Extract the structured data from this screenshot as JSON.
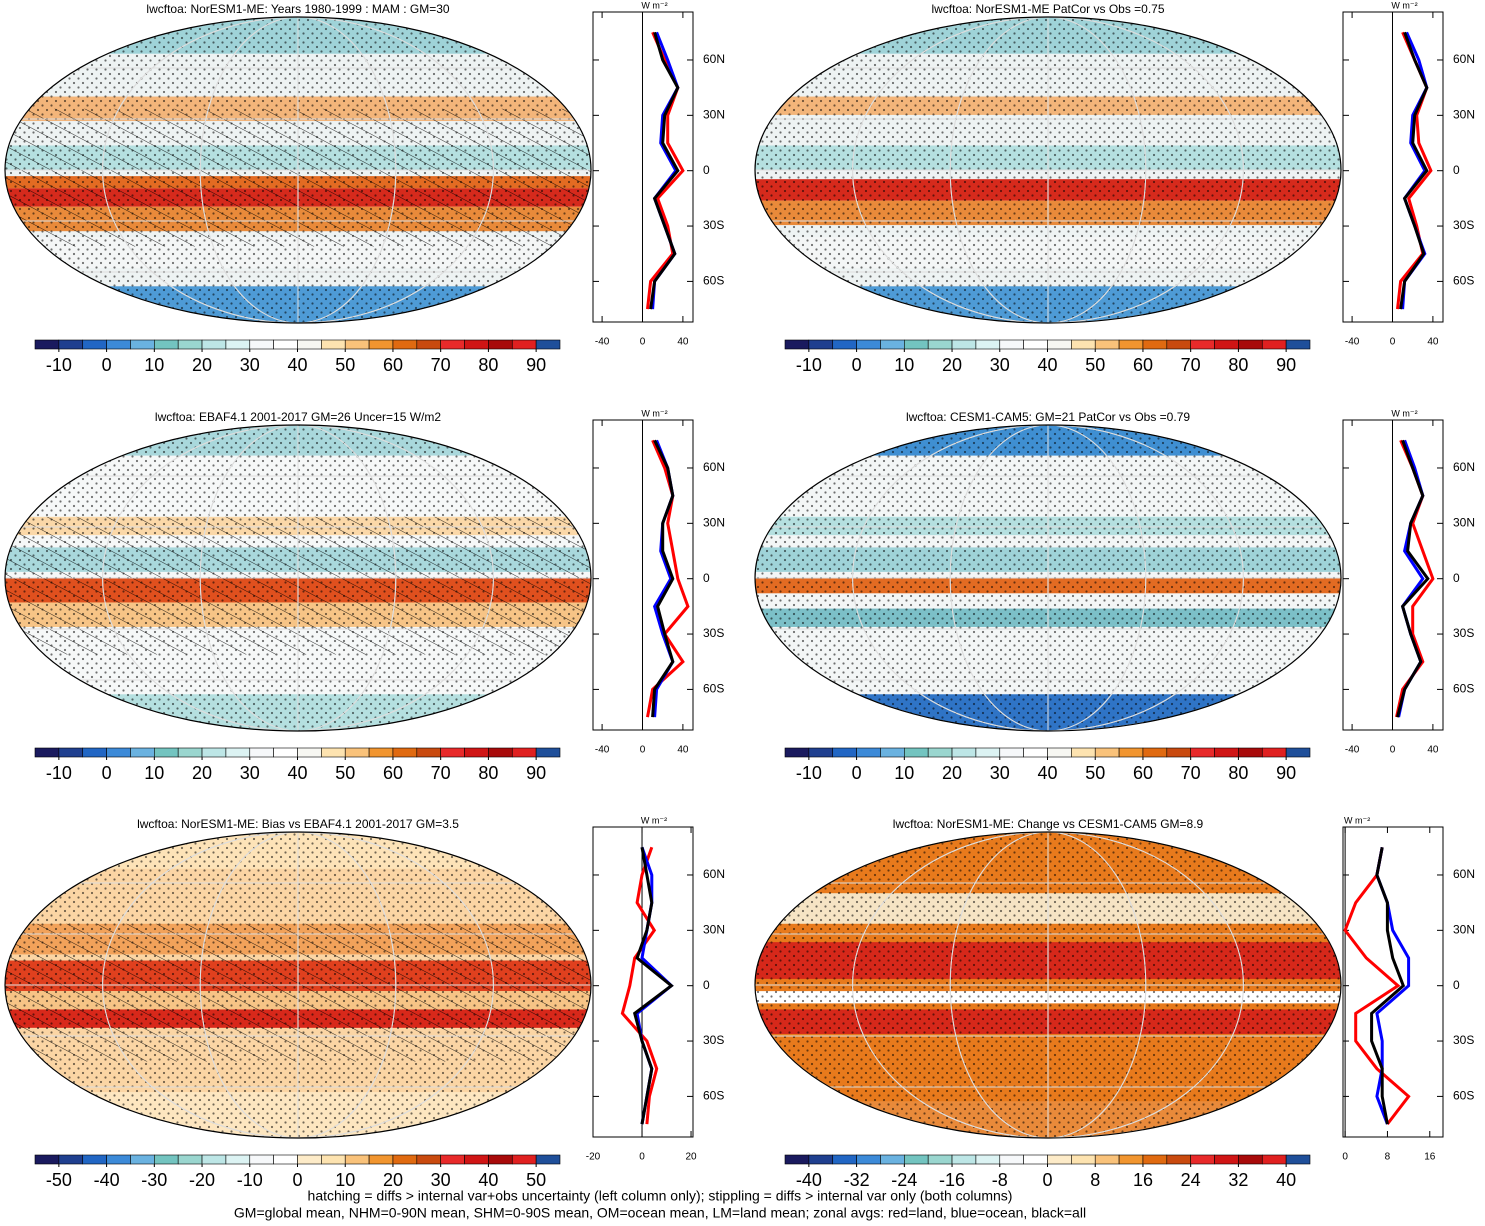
{
  "chart_data": [
    {
      "type": "line",
      "title": "lwcftoa: NorESM1-ME: Years 1980-1999 : MAM : GM=30",
      "x_label": "W m⁻²",
      "xlim": [
        -49,
        50
      ],
      "xticks": [
        -40,
        0,
        40
      ],
      "ylim": [
        -82,
        86
      ],
      "yticks": [
        {
          "value": 60,
          "label": "60N"
        },
        {
          "value": 30,
          "label": "30N"
        },
        0,
        {
          "value": -30,
          "label": "30S"
        },
        {
          "value": -60,
          "label": "60S"
        }
      ],
      "y": [
        -75,
        -60,
        -45,
        -30,
        -15,
        0,
        15,
        30,
        45,
        60,
        75
      ],
      "series": [
        {
          "color": "#ff0000",
          "values": [
            5,
            8,
            30,
            25,
            15,
            40,
            25,
            25,
            35,
            22,
            10
          ]
        },
        {
          "color": "#0000ff",
          "values": [
            10,
            12,
            32,
            22,
            12,
            33,
            18,
            20,
            35,
            25,
            14
          ]
        },
        {
          "color": "#000000",
          "values": [
            8,
            12,
            32,
            22,
            12,
            35,
            20,
            22,
            35,
            20,
            12
          ]
        }
      ],
      "colorbar_lim": [
        -15,
        95
      ],
      "colorbar_ticks": [
        -10,
        0,
        10,
        20,
        30,
        40,
        50,
        60,
        70,
        80,
        90
      ],
      "colorbar_colors": [
        "#1a1a5e",
        "#1f3f8f",
        "#2166c4",
        "#3c8ad8",
        "#6ab2e0",
        "#73c4c0",
        "#9ad6cf",
        "#bde6e6",
        "#dcf3f3",
        "#f6f8fa",
        "#ffffff",
        "#f7f7f2",
        "#fde3b0",
        "#f9c27a",
        "#f1952f",
        "#e06a10",
        "#c94a0f",
        "#e82a2a",
        "#d01515",
        "#a80a0a",
        "#e02020",
        "#1f4f9a"
      ]
    },
    {
      "type": "line",
      "title": "lwcftoa: NorESM1-ME PatCor vs Obs =0.75",
      "x_label": "W m⁻²",
      "xlim": [
        -49,
        50
      ],
      "xticks": [
        -40,
        0,
        40
      ],
      "ylim": [
        -82,
        86
      ],
      "yticks": [
        {
          "value": 60,
          "label": "60N"
        },
        {
          "value": 30,
          "label": "30N"
        },
        0,
        {
          "value": -30,
          "label": "30S"
        },
        {
          "value": -60,
          "label": "60S"
        }
      ],
      "y": [
        -75,
        -60,
        -45,
        -30,
        -15,
        0,
        15,
        30,
        45,
        60,
        75
      ],
      "series": [
        {
          "color": "#ff0000",
          "values": [
            5,
            8,
            30,
            24,
            16,
            38,
            26,
            24,
            34,
            22,
            10
          ]
        },
        {
          "color": "#0000ff",
          "values": [
            10,
            12,
            32,
            22,
            12,
            32,
            18,
            20,
            34,
            26,
            14
          ]
        },
        {
          "color": "#000000",
          "values": [
            8,
            12,
            31,
            22,
            12,
            34,
            20,
            22,
            34,
            22,
            12
          ]
        }
      ],
      "colorbar_lim": [
        -15,
        95
      ],
      "colorbar_ticks": [
        -10,
        0,
        10,
        20,
        30,
        40,
        50,
        60,
        70,
        80,
        90
      ],
      "colorbar_colors": [
        "#1a1a5e",
        "#1f3f8f",
        "#2166c4",
        "#3c8ad8",
        "#6ab2e0",
        "#73c4c0",
        "#9ad6cf",
        "#bde6e6",
        "#dcf3f3",
        "#f6f8fa",
        "#ffffff",
        "#f7f7f2",
        "#fde3b0",
        "#f9c27a",
        "#f1952f",
        "#e06a10",
        "#c94a0f",
        "#e82a2a",
        "#d01515",
        "#a80a0a",
        "#e02020",
        "#1f4f9a"
      ]
    },
    {
      "type": "line",
      "title": "lwcftoa: EBAF4.1 2001-2017 GM=26 Uncer=15 W/m2",
      "x_label": "W m⁻²",
      "xlim": [
        -49,
        50
      ],
      "xticks": [
        -40,
        0,
        40
      ],
      "ylim": [
        -82,
        86
      ],
      "yticks": [
        {
          "value": 60,
          "label": "60N"
        },
        {
          "value": 30,
          "label": "30N"
        },
        0,
        {
          "value": -30,
          "label": "30S"
        },
        {
          "value": -60,
          "label": "60S"
        }
      ],
      "y": [
        -75,
        -60,
        -45,
        -30,
        -15,
        0,
        15,
        30,
        45,
        60,
        75
      ],
      "series": [
        {
          "color": "#ff0000",
          "values": [
            5,
            10,
            40,
            22,
            45,
            35,
            30,
            25,
            30,
            22,
            10
          ]
        },
        {
          "color": "#0000ff",
          "values": [
            12,
            14,
            30,
            20,
            12,
            28,
            18,
            20,
            30,
            25,
            14
          ]
        },
        {
          "color": "#000000",
          "values": [
            10,
            12,
            30,
            22,
            15,
            30,
            20,
            20,
            30,
            25,
            12
          ]
        }
      ],
      "colorbar_lim": [
        -15,
        95
      ],
      "colorbar_ticks": [
        -10,
        0,
        10,
        20,
        30,
        40,
        50,
        60,
        70,
        80,
        90
      ],
      "colorbar_colors": [
        "#1a1a5e",
        "#1f3f8f",
        "#2166c4",
        "#3c8ad8",
        "#6ab2e0",
        "#73c4c0",
        "#9ad6cf",
        "#bde6e6",
        "#dcf3f3",
        "#f6f8fa",
        "#ffffff",
        "#f7f7f2",
        "#fde3b0",
        "#f9c27a",
        "#f1952f",
        "#e06a10",
        "#c94a0f",
        "#e82a2a",
        "#d01515",
        "#a80a0a",
        "#e02020",
        "#1f4f9a"
      ]
    },
    {
      "type": "line",
      "title": "lwcftoa: CESM1-CAM5: GM=21 PatCor vs Obs =0.79",
      "x_label": "W m⁻²",
      "xlim": [
        -49,
        50
      ],
      "xticks": [
        -40,
        0,
        40
      ],
      "ylim": [
        -82,
        86
      ],
      "yticks": [
        {
          "value": 60,
          "label": "60N"
        },
        {
          "value": 30,
          "label": "30N"
        },
        0,
        {
          "value": -30,
          "label": "30S"
        },
        {
          "value": -60,
          "label": "60S"
        }
      ],
      "y": [
        -75,
        -60,
        -45,
        -30,
        -15,
        0,
        15,
        30,
        45,
        60,
        75
      ],
      "series": [
        {
          "color": "#ff0000",
          "values": [
            4,
            10,
            30,
            20,
            20,
            40,
            30,
            20,
            30,
            20,
            8
          ]
        },
        {
          "color": "#0000ff",
          "values": [
            6,
            12,
            28,
            18,
            10,
            30,
            12,
            18,
            30,
            22,
            12
          ]
        },
        {
          "color": "#000000",
          "values": [
            5,
            12,
            28,
            18,
            10,
            35,
            15,
            18,
            30,
            20,
            10
          ]
        }
      ],
      "colorbar_lim": [
        -15,
        95
      ],
      "colorbar_ticks": [
        -10,
        0,
        10,
        20,
        30,
        40,
        50,
        60,
        70,
        80,
        90
      ],
      "colorbar_colors": [
        "#1a1a5e",
        "#1f3f8f",
        "#2166c4",
        "#3c8ad8",
        "#6ab2e0",
        "#73c4c0",
        "#9ad6cf",
        "#bde6e6",
        "#dcf3f3",
        "#f6f8fa",
        "#ffffff",
        "#f7f7f2",
        "#fde3b0",
        "#f9c27a",
        "#f1952f",
        "#e06a10",
        "#c94a0f",
        "#e82a2a",
        "#d01515",
        "#a80a0a",
        "#e02020",
        "#1f4f9a"
      ]
    },
    {
      "type": "line",
      "title": "lwcftoa: NorESM1-ME: Bias vs EBAF4.1 2001-2017 GM=3.5",
      "x_label": "W m⁻²",
      "xlim": [
        -20,
        20.8
      ],
      "xticks": [
        -20,
        0,
        20
      ],
      "ylim": [
        -82,
        86
      ],
      "yticks": [
        {
          "value": 60,
          "label": "60N"
        },
        {
          "value": 30,
          "label": "30N"
        },
        0,
        {
          "value": -30,
          "label": "30S"
        },
        {
          "value": -60,
          "label": "60S"
        }
      ],
      "y": [
        -75,
        -60,
        -45,
        -30,
        -15,
        0,
        15,
        30,
        45,
        60,
        75
      ],
      "series": [
        {
          "color": "#ff0000",
          "values": [
            2,
            3,
            6,
            2,
            -8,
            -5,
            -3,
            5,
            -2,
            0,
            4
          ]
        },
        {
          "color": "#0000ff",
          "values": [
            0,
            2,
            4,
            0,
            -2,
            12,
            0,
            2,
            4,
            4,
            0
          ]
        },
        {
          "color": "#000000",
          "values": [
            0,
            2,
            4,
            0,
            -3,
            12,
            -2,
            2,
            4,
            2,
            0
          ]
        }
      ],
      "colorbar_lim": [
        -55,
        55
      ],
      "colorbar_ticks": [
        -50,
        -40,
        -30,
        -20,
        -10,
        0,
        10,
        20,
        30,
        40,
        50
      ],
      "colorbar_colors": [
        "#1a1a5e",
        "#1f3f8f",
        "#2166c4",
        "#3c8ad8",
        "#6ab2e0",
        "#73c4c0",
        "#9ad6cf",
        "#bde6e6",
        "#dcf3f3",
        "#f6f8fa",
        "#ffffff",
        "#fdebc8",
        "#fde3b0",
        "#f9c27a",
        "#f1952f",
        "#e06a10",
        "#c94a0f",
        "#e82a2a",
        "#d01515",
        "#a80a0a",
        "#e02020",
        "#1f4f9a"
      ]
    },
    {
      "type": "line",
      "title": "lwcftoa: NorESM1-ME: Change vs CESM1-CAM5 GM=8.9",
      "x_label": "W m⁻²",
      "xlim": [
        -0.4,
        18.5
      ],
      "xticks": [
        0,
        8,
        16
      ],
      "ylim": [
        -82,
        86
      ],
      "yticks": [
        {
          "value": 60,
          "label": "60N"
        },
        {
          "value": 30,
          "label": "30N"
        },
        0,
        {
          "value": -30,
          "label": "30S"
        },
        {
          "value": -60,
          "label": "60S"
        }
      ],
      "y": [
        -75,
        -60,
        -45,
        -30,
        -15,
        0,
        15,
        30,
        45,
        60,
        75
      ],
      "series": [
        {
          "color": "#ff0000",
          "values": [
            8,
            12,
            6,
            2,
            2,
            10,
            4,
            0,
            2,
            6,
            7
          ]
        },
        {
          "color": "#0000ff",
          "values": [
            8,
            6,
            7,
            7,
            6,
            12,
            12,
            9,
            8,
            6,
            7
          ]
        },
        {
          "color": "#000000",
          "values": [
            8,
            7,
            7,
            5,
            5,
            11,
            9,
            8,
            8,
            6,
            7
          ]
        }
      ],
      "colorbar_lim": [
        -44,
        44
      ],
      "colorbar_ticks": [
        -40,
        -32,
        -24,
        -16,
        -8,
        0,
        8,
        16,
        24,
        32,
        40
      ],
      "colorbar_colors": [
        "#1a1a5e",
        "#1f3f8f",
        "#2166c4",
        "#3c8ad8",
        "#6ab2e0",
        "#73c4c0",
        "#9ad6cf",
        "#bde6e6",
        "#dcf3f3",
        "#f6f8fa",
        "#ffffff",
        "#fdebc8",
        "#fde3b0",
        "#f9c27a",
        "#f1952f",
        "#e06a10",
        "#c94a0f",
        "#e82a2a",
        "#d01515",
        "#a80a0a",
        "#e02020",
        "#1f4f9a"
      ]
    }
  ],
  "notes": [
    "hatching = diffs > internal var+obs uncertainty (left column only); stippling = diffs > internal var only (both columns)",
    "GM=global mean, NHM=0-90N mean, SHM=0-90S mean, OM=ocean mean, LM=land mean; zonal avgs: red=land, blue=ocean, black=all"
  ]
}
